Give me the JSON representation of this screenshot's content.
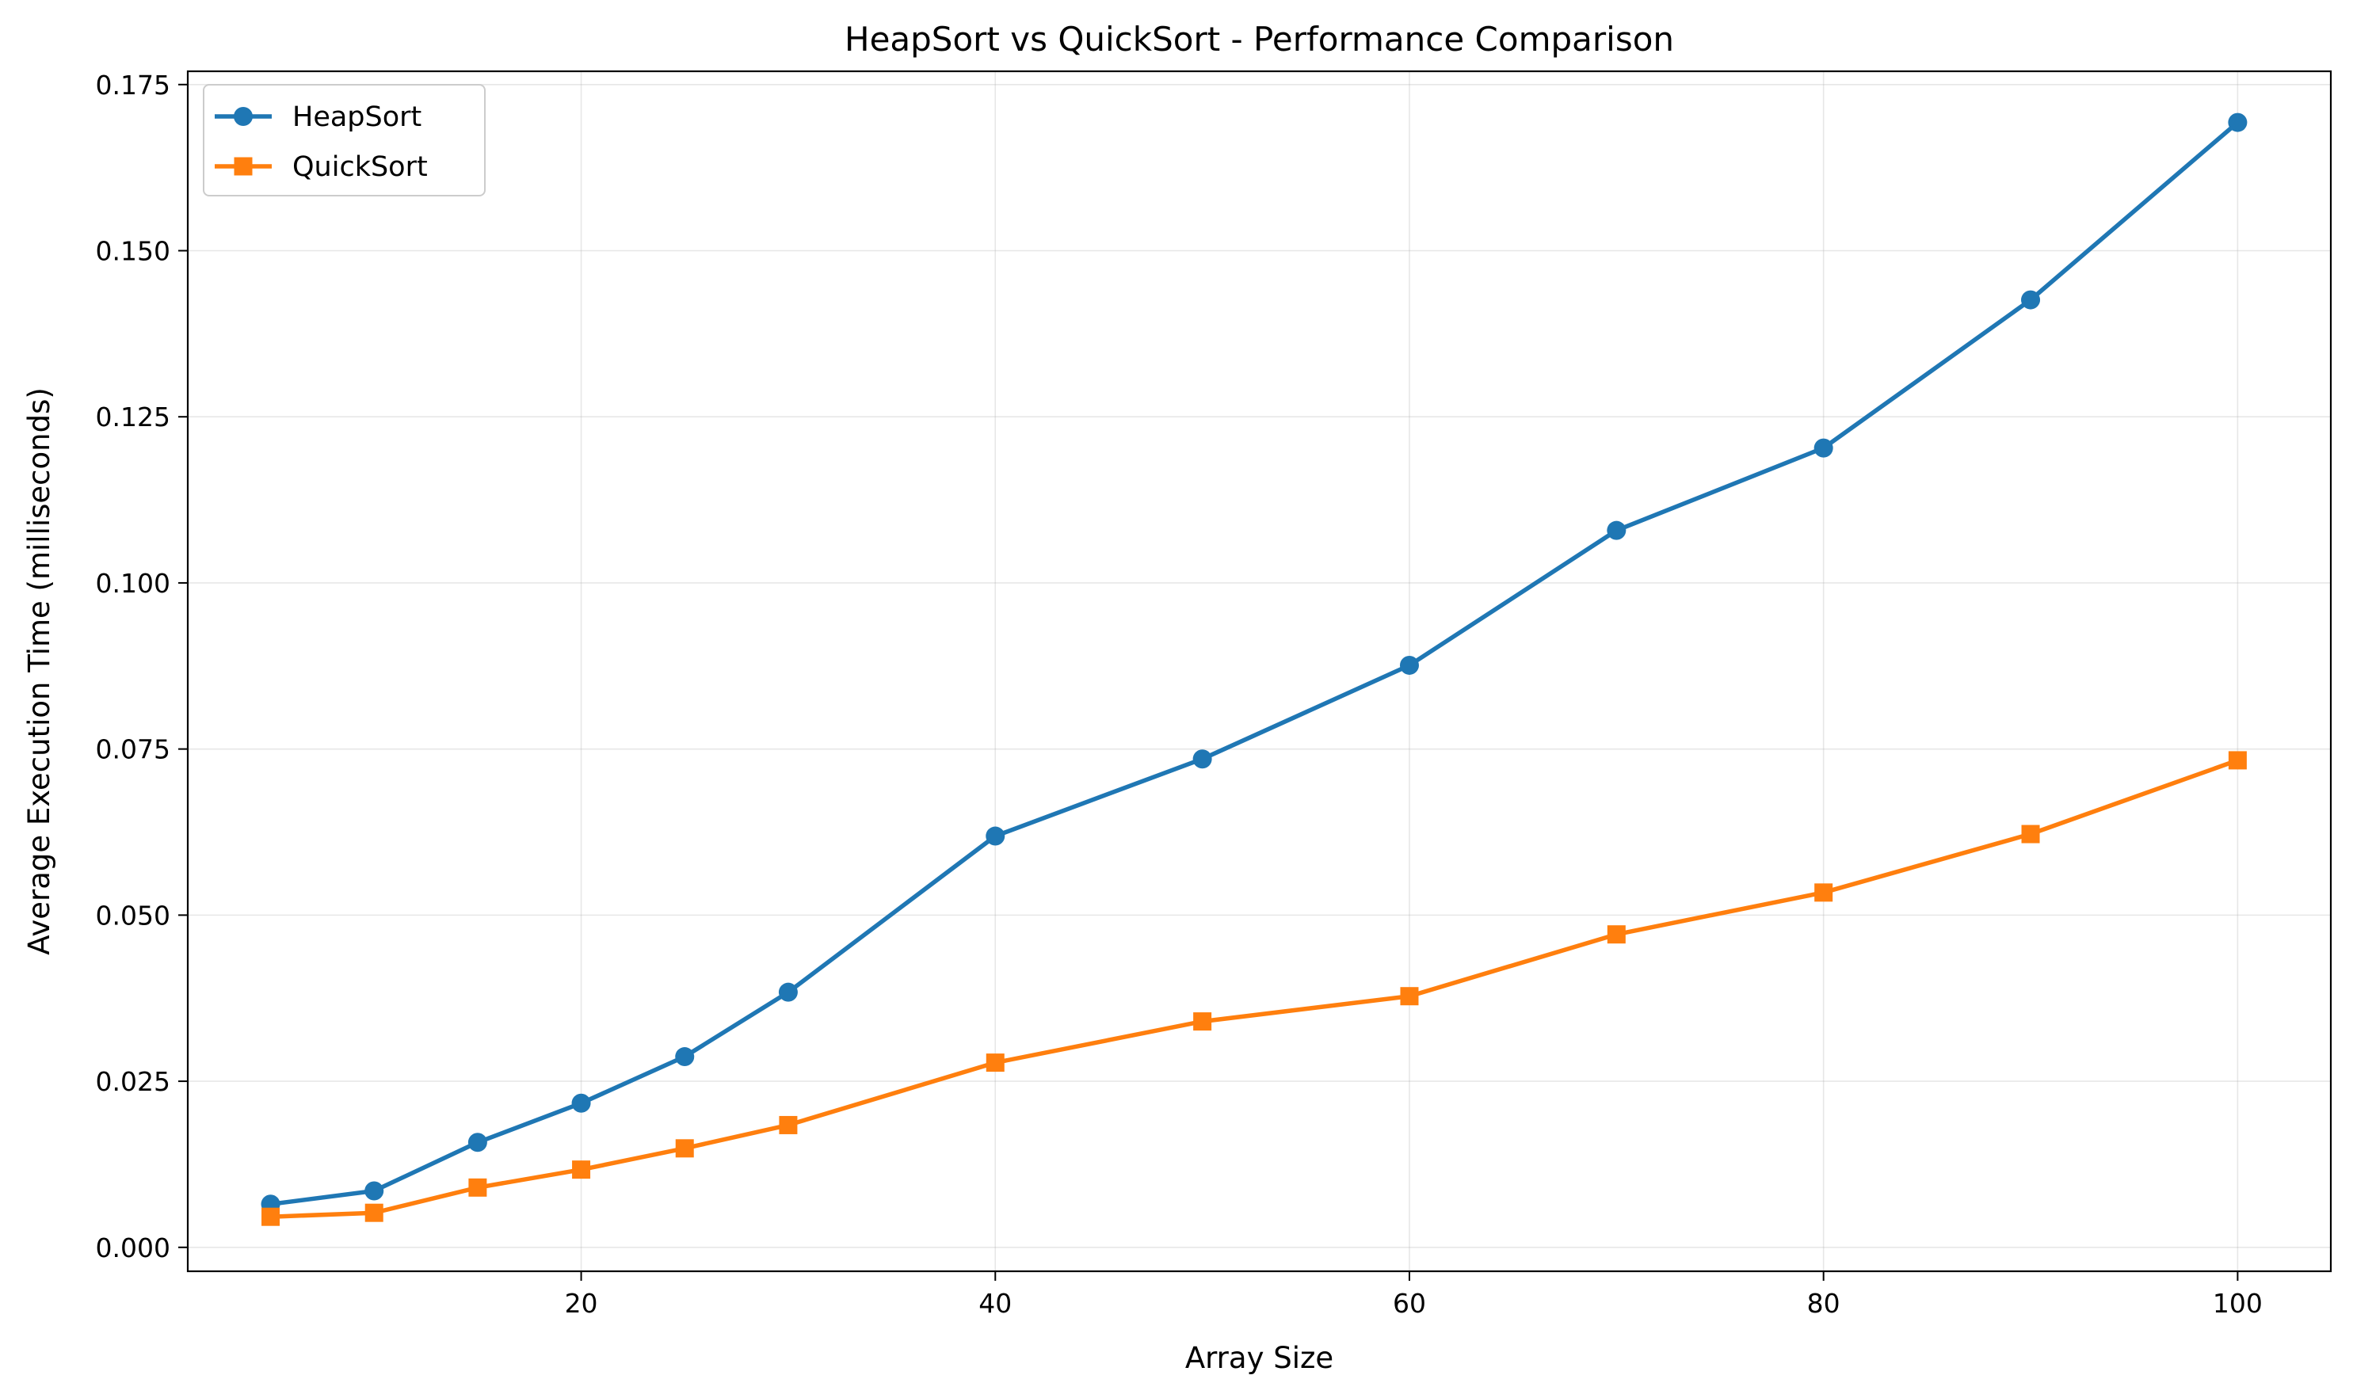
{
  "chart_data": {
    "type": "line",
    "title": "HeapSort vs QuickSort - Performance Comparison",
    "xlabel": "Array Size",
    "ylabel": "Average Execution Time (milliseconds)",
    "xlim": [
      1.0,
      104.5
    ],
    "ylim": [
      -0.0036,
      0.177
    ],
    "x_ticks": [
      20,
      40,
      60,
      80,
      100
    ],
    "x_tick_labels": [
      "20",
      "40",
      "60",
      "80",
      "100"
    ],
    "y_ticks": [
      0.0,
      0.025,
      0.05,
      0.075,
      0.1,
      0.125,
      0.15,
      0.175
    ],
    "y_tick_labels": [
      "0.000",
      "0.025",
      "0.050",
      "0.075",
      "0.100",
      "0.125",
      "0.150",
      "0.175"
    ],
    "grid": true,
    "legend_position": "top-left",
    "x": [
      5,
      10,
      15,
      20,
      25,
      30,
      40,
      50,
      60,
      70,
      80,
      90,
      100
    ],
    "series": [
      {
        "name": "HeapSort",
        "color": "#1f77b4",
        "marker": "circle",
        "values": [
          0.0065,
          0.0085,
          0.0158,
          0.0217,
          0.0287,
          0.0384,
          0.0619,
          0.0735,
          0.0876,
          0.1079,
          0.1203,
          0.1426,
          0.1693
        ]
      },
      {
        "name": "QuickSort",
        "color": "#ff7f0e",
        "marker": "square",
        "values": [
          0.0046,
          0.0052,
          0.009,
          0.0117,
          0.0149,
          0.0184,
          0.0278,
          0.034,
          0.0378,
          0.0471,
          0.0534,
          0.0622,
          0.0733
        ]
      }
    ]
  }
}
